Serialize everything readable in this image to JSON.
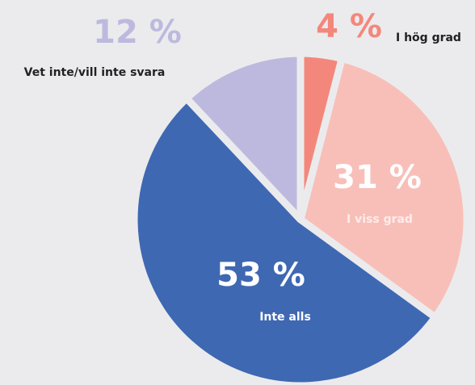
{
  "chart_data": {
    "type": "pie",
    "categories": [
      "I hög grad",
      "I viss grad",
      "Inte alls",
      "Vet inte/vill inte svara"
    ],
    "values": [
      4,
      31,
      53,
      12
    ],
    "value_labels": [
      "4 %",
      "31 %",
      "53 %",
      "12 %"
    ],
    "colors": [
      "#f4877b",
      "#f8bfb9",
      "#3f68b3",
      "#bdb9de"
    ]
  }
}
